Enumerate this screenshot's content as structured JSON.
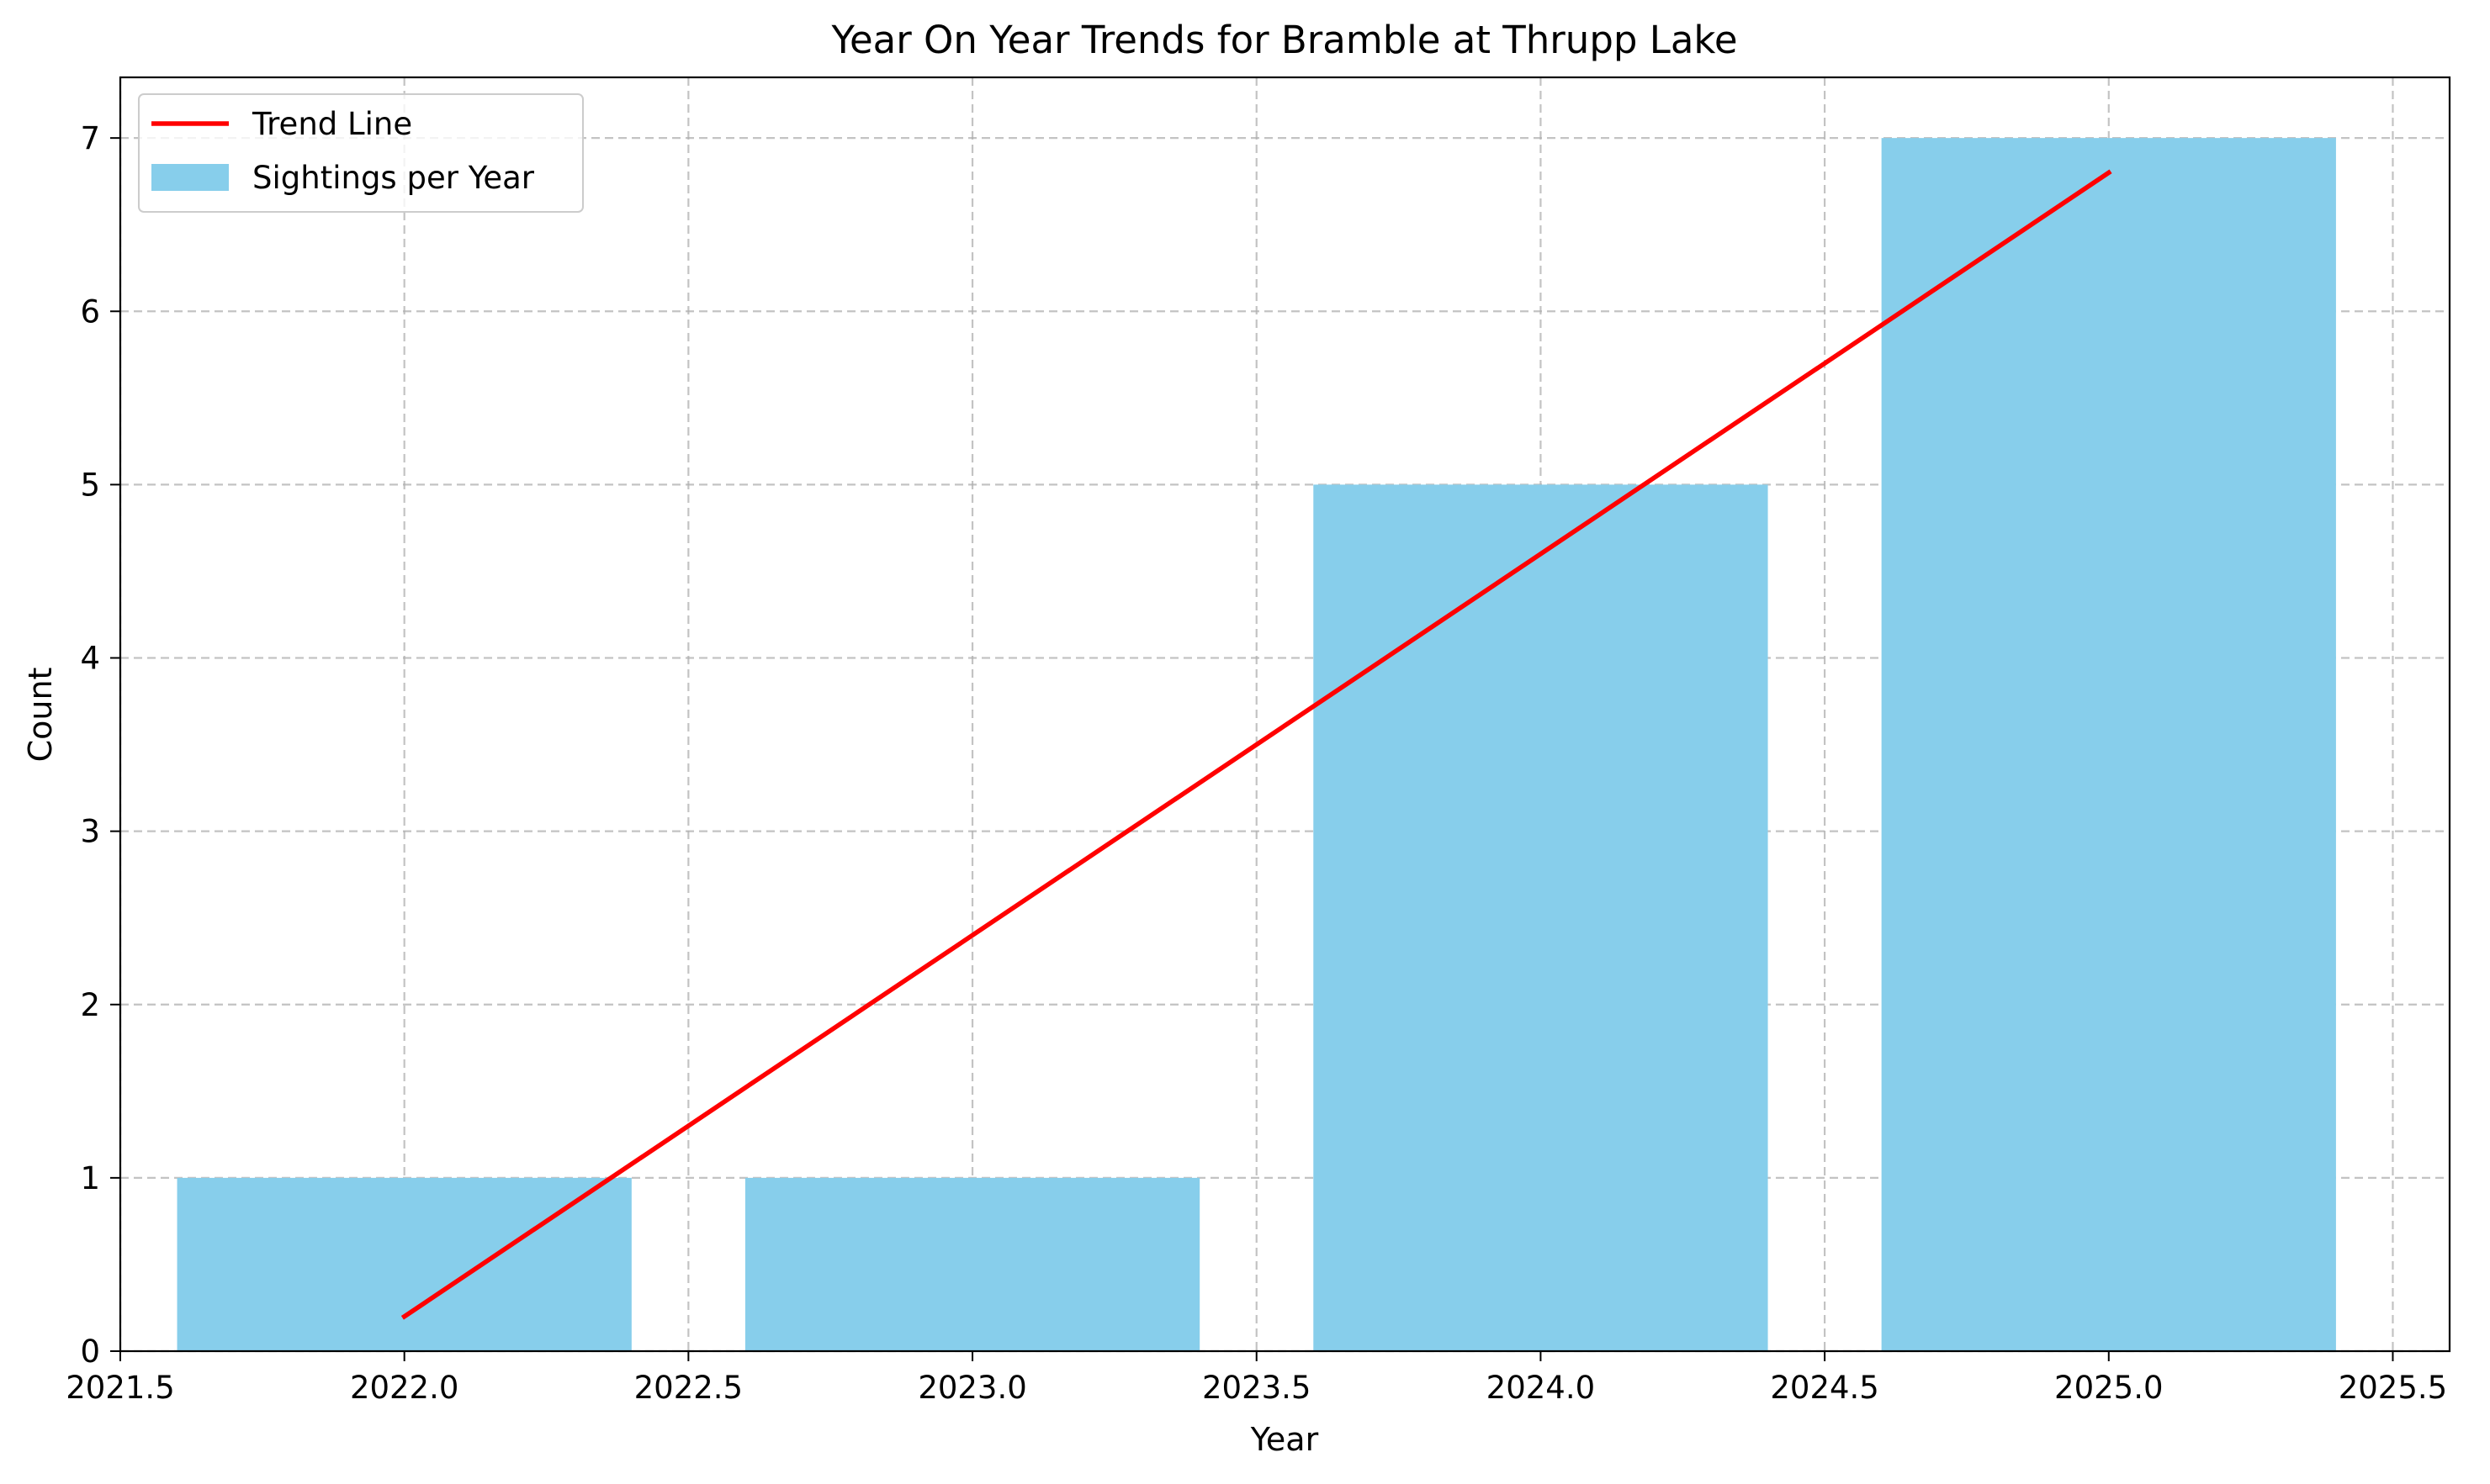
{
  "chart_data": {
    "type": "bar",
    "title": "Year On Year Trends for Bramble at Thrupp Lake",
    "xlabel": "Year",
    "ylabel": "Count",
    "xlim": [
      2021.5,
      2025.6
    ],
    "ylim": [
      0,
      7.35
    ],
    "xticks": [
      "2021.5",
      "2022.0",
      "2022.5",
      "2023.0",
      "2023.5",
      "2024.0",
      "2024.5",
      "2025.0",
      "2025.5"
    ],
    "yticks": [
      "0",
      "1",
      "2",
      "3",
      "4",
      "5",
      "6",
      "7"
    ],
    "grid": true,
    "legend_position": "top-left",
    "bar_width": 0.8,
    "series": [
      {
        "name": "Sightings per Year",
        "kind": "bar",
        "color": "#87CEEB",
        "x": [
          2022,
          2023,
          2024,
          2025
        ],
        "values": [
          1,
          1,
          5,
          7
        ]
      },
      {
        "name": "Trend Line",
        "kind": "line",
        "color": "#ff0000",
        "x": [
          2022,
          2025
        ],
        "values": [
          0.2,
          6.8
        ]
      }
    ]
  }
}
